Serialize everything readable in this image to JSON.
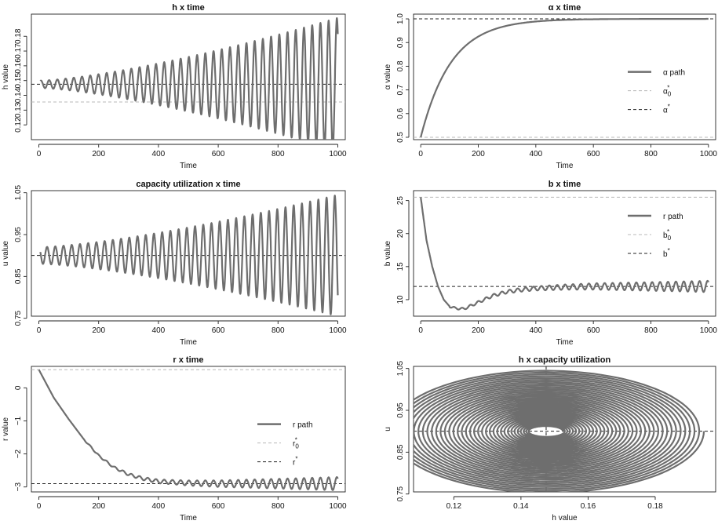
{
  "chart_data": [
    {
      "id": "p1",
      "type": "line",
      "title": "h x time",
      "xlabel": "Time",
      "ylabel": "h value",
      "xlim": [
        -25,
        1025
      ],
      "ylim": [
        0.11,
        0.195
      ],
      "xticks": [
        0,
        200,
        400,
        600,
        800,
        1000
      ],
      "yticks": [
        0.12,
        0.13,
        0.14,
        0.15,
        0.16,
        0.17,
        0.18
      ],
      "ytick_labels": [
        "0.12",
        "0.13",
        "0.14",
        "0.15",
        "0.16",
        "0.17",
        "0.18"
      ],
      "series": [
        {
          "role": "path",
          "color": "#6e6e6e",
          "kind": "oscillation",
          "x_start": 5,
          "x_end": 1000,
          "center": 0.1475,
          "amplitude": [
            0.0025,
            0.045
          ],
          "period": 27.5
        },
        {
          "role": "ref",
          "color": "#b8b8b8",
          "dash": "4,3",
          "y": 0.1355
        },
        {
          "role": "ref",
          "color": "#222222",
          "dash": "4,3",
          "y": 0.1475
        }
      ]
    },
    {
      "id": "p2",
      "type": "line",
      "title": "α x time",
      "xlabel": "Time",
      "ylabel": "α value",
      "xlim": [
        -25,
        1025
      ],
      "ylim": [
        0.49,
        1.02
      ],
      "xticks": [
        0,
        200,
        400,
        600,
        800,
        1000
      ],
      "yticks": [
        0.5,
        0.6,
        0.7,
        0.8,
        0.9,
        1.0
      ],
      "ytick_labels": [
        "0.5",
        "0.6",
        "0.7",
        "0.8",
        "0.9",
        "1.0"
      ],
      "series": [
        {
          "role": "path",
          "name": "α path",
          "color": "#6e6e6e",
          "kind": "approach",
          "x_start": 0,
          "x_end": 1000,
          "start": 0.5,
          "target": 1.0,
          "rate": 0.0095
        },
        {
          "role": "ref",
          "name": "α",
          "sub": "0",
          "sup": "*",
          "color": "#b8b8b8",
          "dash": "4,3",
          "y": 0.5
        },
        {
          "role": "ref",
          "name": "α",
          "sup": "*",
          "color": "#222222",
          "dash": "4,3",
          "y": 1.0
        }
      ],
      "legend": "center-right"
    },
    {
      "id": "p3",
      "type": "line",
      "title": "capacity utilization x time",
      "xlabel": "Time",
      "ylabel": "u value",
      "xlim": [
        -25,
        1025
      ],
      "ylim": [
        0.755,
        1.055
      ],
      "xticks": [
        0,
        200,
        400,
        600,
        800,
        1000
      ],
      "yticks": [
        0.75,
        0.85,
        0.95,
        1.05
      ],
      "ytick_labels": [
        "0.75",
        "0.85",
        "0.95",
        "1.05"
      ],
      "series": [
        {
          "role": "path",
          "color": "#6e6e6e",
          "kind": "oscillation",
          "x_start": 5,
          "x_end": 1000,
          "center": 0.9,
          "amplitude": [
            0.02,
            0.145
          ],
          "period": 27.5,
          "phase": 1.57
        },
        {
          "role": "ref",
          "color": "#222222",
          "dash": "4,3",
          "y": 0.9
        }
      ]
    },
    {
      "id": "p4",
      "type": "line",
      "title": "b x time",
      "xlabel": "Time",
      "ylabel": "b value",
      "xlim": [
        -25,
        1025
      ],
      "ylim": [
        7.5,
        26.5
      ],
      "xticks": [
        0,
        200,
        400,
        600,
        800,
        1000
      ],
      "yticks": [
        10,
        15,
        20,
        25
      ],
      "ytick_labels": [
        "10",
        "15",
        "20",
        "25"
      ],
      "series": [
        {
          "role": "path",
          "name": "r path",
          "color": "#6e6e6e",
          "kind": "decay_then_osc",
          "x_start": 0,
          "x_end": 1000,
          "points": [
            [
              0,
              25.5
            ],
            [
              20,
              19
            ],
            [
              40,
              15
            ],
            [
              60,
              12
            ],
            [
              80,
              10
            ],
            [
              100,
              9
            ],
            [
              120,
              8.7
            ],
            [
              150,
              8.6
            ],
            [
              200,
              9.6
            ],
            [
              250,
              10.6
            ],
            [
              300,
              11.2
            ],
            [
              350,
              11.5
            ],
            [
              400,
              11.7
            ],
            [
              500,
              11.9
            ],
            [
              600,
              12.0
            ],
            [
              1000,
              12.0
            ]
          ],
          "osc_amplitude": [
            0.15,
            0.85
          ],
          "osc_from": 100,
          "period": 27.5
        },
        {
          "role": "ref",
          "name": "b",
          "sub": "0",
          "sup": "*",
          "color": "#b8b8b8",
          "dash": "4,3",
          "y": 25.5
        },
        {
          "role": "ref",
          "name": "b",
          "sup": "*",
          "color": "#222222",
          "dash": "4,3",
          "y": 12.0
        }
      ],
      "legend": "top-right"
    },
    {
      "id": "p5",
      "type": "line",
      "title": "r x time",
      "xlabel": "Time",
      "ylabel": "r value",
      "xlim": [
        -25,
        1025
      ],
      "ylim": [
        -3.15,
        0.65
      ],
      "xticks": [
        0,
        200,
        400,
        600,
        800,
        1000
      ],
      "yticks": [
        -3,
        -2,
        -1,
        0
      ],
      "ytick_labels": [
        "−3",
        "−2",
        "−1",
        "0"
      ],
      "series": [
        {
          "role": "path",
          "name": "r path",
          "color": "#6e6e6e",
          "kind": "decay_then_osc",
          "x_start": 0,
          "x_end": 1000,
          "points": [
            [
              0,
              0.55
            ],
            [
              50,
              -0.3
            ],
            [
              100,
              -0.95
            ],
            [
              150,
              -1.55
            ],
            [
              200,
              -2.05
            ],
            [
              250,
              -2.4
            ],
            [
              300,
              -2.62
            ],
            [
              350,
              -2.75
            ],
            [
              400,
              -2.83
            ],
            [
              500,
              -2.88
            ],
            [
              600,
              -2.9
            ],
            [
              1000,
              -2.9
            ]
          ],
          "osc_amplitude": [
            0.02,
            0.2
          ],
          "osc_from": 150,
          "period": 27.5
        },
        {
          "role": "ref",
          "name": "r",
          "sub": "0",
          "sup": "*",
          "color": "#b8b8b8",
          "dash": "4,3",
          "y": 0.55
        },
        {
          "role": "ref",
          "name": "r",
          "sup": "*",
          "color": "#222222",
          "dash": "4,3",
          "y": -2.9
        }
      ],
      "legend": "center-right"
    },
    {
      "id": "p6",
      "type": "line",
      "title": "h x capacity utilization",
      "xlabel": "h value",
      "ylabel": "u",
      "xlim": [
        0.108,
        0.198
      ],
      "ylim": [
        0.755,
        1.055
      ],
      "xticks": [
        0.12,
        0.14,
        0.16,
        0.18
      ],
      "xtick_labels": [
        "0.12",
        "0.14",
        "0.16",
        "0.18"
      ],
      "yticks": [
        0.75,
        0.85,
        0.95,
        1.05
      ],
      "ytick_labels": [
        "0.75",
        "0.85",
        "0.95",
        "1.05"
      ],
      "series": [
        {
          "role": "path",
          "color": "#6e6e6e",
          "kind": "spiral",
          "center": [
            0.1475,
            0.9
          ],
          "rx": [
            0.005,
            0.047
          ],
          "ry": [
            0.012,
            0.148
          ],
          "turns": 36
        },
        {
          "role": "ref",
          "color": "#222222",
          "dash": "4,3",
          "y": 0.9
        },
        {
          "role": "ref",
          "color": "#222222",
          "dash": "4,3",
          "x": 0.1475
        }
      ]
    }
  ]
}
